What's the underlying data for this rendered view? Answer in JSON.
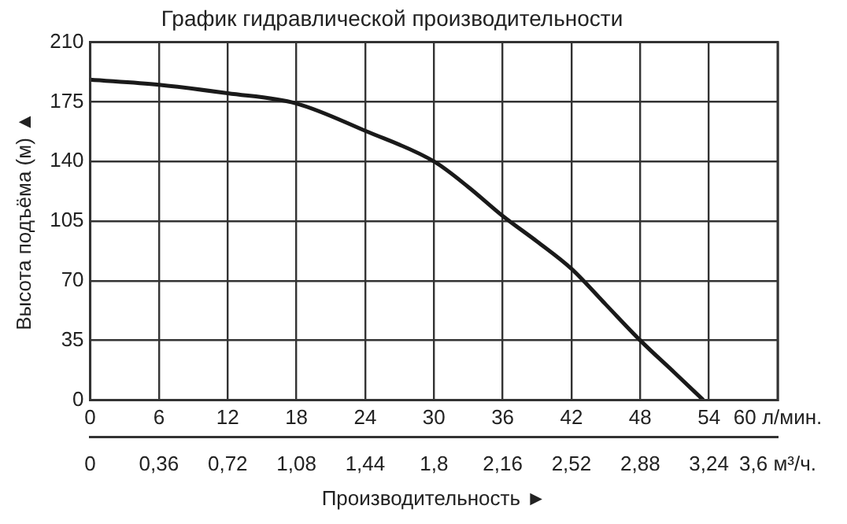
{
  "chart_data": {
    "type": "line",
    "title": "График гидравлической производительности",
    "xlabel": "Производительность ►",
    "ylabel": "Высота подъёма (м) ▲",
    "x": [
      0,
      6,
      12,
      18,
      24,
      30,
      33,
      36,
      39,
      42,
      45,
      48,
      51,
      53.5
    ],
    "series": [
      {
        "color": "#1a1a1a",
        "values": [
          188,
          185,
          180,
          174,
          158,
          140,
          125,
          108,
          93,
          77,
          56,
          35,
          16,
          0
        ]
      }
    ],
    "xlim": [
      0,
      60
    ],
    "xticks": [
      0,
      6,
      12,
      18,
      24,
      30,
      36,
      42,
      48,
      54,
      {
        "value": 60,
        "label": "60 л/мин."
      }
    ],
    "x2lim": [
      0,
      3.6
    ],
    "x2ticks": [
      0,
      {
        "value": 0.36,
        "label": "0,36"
      },
      {
        "value": 0.72,
        "label": "0,72"
      },
      {
        "value": 1.08,
        "label": "1,08"
      },
      {
        "value": 1.44,
        "label": "1,44"
      },
      {
        "value": 1.8,
        "label": "1,8"
      },
      {
        "value": 2.16,
        "label": "2,16"
      },
      {
        "value": 2.52,
        "label": "2,52"
      },
      {
        "value": 2.88,
        "label": "2,88"
      },
      {
        "value": 3.24,
        "label": "3,24"
      },
      {
        "value": 3.6,
        "label": "3,6 м³/ч."
      }
    ],
    "ylim": [
      0,
      210
    ],
    "yticks": [
      0,
      35,
      70,
      105,
      140,
      175,
      210
    ],
    "grid": true,
    "legend": false,
    "marker": "none",
    "line_style": "solid"
  }
}
